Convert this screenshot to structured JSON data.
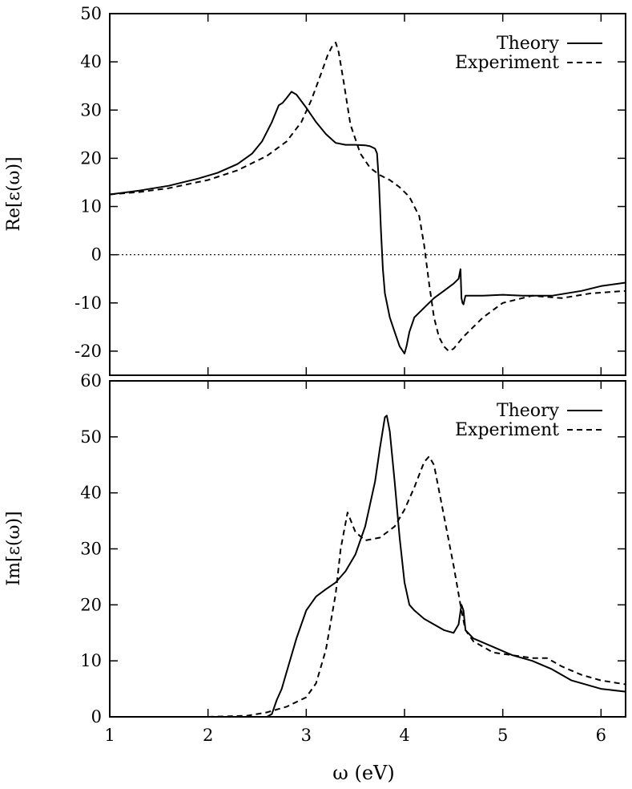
{
  "chart_data": [
    {
      "type": "line",
      "panel": "top",
      "ylabel": "Re[ε(ω)]",
      "xlabel": "",
      "xlim": [
        1,
        6.25
      ],
      "ylim": [
        -25,
        50
      ],
      "x_ticks": [
        "1",
        "2",
        "3",
        "4",
        "5",
        "6"
      ],
      "y_ticks": [
        "-20",
        "-10",
        "0",
        "10",
        "20",
        "30",
        "40",
        "50"
      ],
      "x_tick_values": [
        1,
        2,
        3,
        4,
        5,
        6
      ],
      "y_tick_values": [
        -20,
        -10,
        0,
        10,
        20,
        30,
        40,
        50
      ],
      "zero_line": true,
      "legend_position": "top-right",
      "series": [
        {
          "name": "Theory",
          "style": "solid",
          "x": [
            1.0,
            1.3,
            1.6,
            1.9,
            2.1,
            2.3,
            2.45,
            2.55,
            2.65,
            2.72,
            2.76,
            2.8,
            2.85,
            2.9,
            3.0,
            3.1,
            3.2,
            3.3,
            3.4,
            3.5,
            3.6,
            3.65,
            3.7,
            3.72,
            3.74,
            3.76,
            3.78,
            3.8,
            3.85,
            3.9,
            3.95,
            4.0,
            4.02,
            4.05,
            4.1,
            4.2,
            4.3,
            4.4,
            4.5,
            4.55,
            4.57,
            4.58,
            4.59,
            4.6,
            4.62,
            4.65,
            4.7,
            4.8,
            5.0,
            5.2,
            5.5,
            5.8,
            6.0,
            6.25
          ],
          "y": [
            12.5,
            13.3,
            14.3,
            15.8,
            17.0,
            18.8,
            21.0,
            23.5,
            27.5,
            31.0,
            31.5,
            32.5,
            33.8,
            33.2,
            30.5,
            27.5,
            25.0,
            23.2,
            22.8,
            22.8,
            22.7,
            22.5,
            22.0,
            21.0,
            15.0,
            5.0,
            -3.0,
            -8.0,
            -13.0,
            -16.0,
            -19.0,
            -20.5,
            -19.0,
            -16.0,
            -13.0,
            -11.0,
            -9.0,
            -7.5,
            -6.0,
            -5.0,
            -3.0,
            -9.0,
            -10.0,
            -10.3,
            -8.5,
            -8.5,
            -8.5,
            -8.5,
            -8.3,
            -8.5,
            -8.5,
            -7.5,
            -6.5,
            -5.8
          ]
        },
        {
          "name": "Experiment",
          "style": "dashed",
          "x": [
            1.0,
            1.3,
            1.6,
            2.0,
            2.3,
            2.6,
            2.8,
            2.95,
            3.05,
            3.15,
            3.22,
            3.27,
            3.3,
            3.33,
            3.38,
            3.45,
            3.55,
            3.65,
            3.75,
            3.85,
            3.95,
            4.05,
            4.15,
            4.2,
            4.25,
            4.3,
            4.35,
            4.4,
            4.45,
            4.5,
            4.6,
            4.8,
            5.0,
            5.3,
            5.6,
            5.9,
            6.25
          ],
          "y": [
            12.5,
            13.0,
            13.8,
            15.5,
            17.5,
            20.5,
            23.5,
            27.5,
            32.0,
            37.5,
            41.5,
            43.5,
            44.0,
            42.0,
            36.0,
            27.0,
            21.0,
            18.0,
            16.5,
            15.5,
            14.0,
            12.0,
            8.0,
            2.0,
            -6.0,
            -13.0,
            -17.0,
            -19.0,
            -20.0,
            -19.5,
            -17.0,
            -13.0,
            -10.0,
            -8.5,
            -9.0,
            -8.0,
            -7.5
          ]
        }
      ]
    },
    {
      "type": "line",
      "panel": "bottom",
      "ylabel": "Im[ε(ω)]",
      "xlabel": "ω (eV)",
      "xlim": [
        1,
        6.25
      ],
      "ylim": [
        0,
        60
      ],
      "x_ticks": [
        "1",
        "2",
        "3",
        "4",
        "5",
        "6"
      ],
      "y_ticks": [
        "0",
        "10",
        "20",
        "30",
        "40",
        "50",
        "60"
      ],
      "x_tick_values": [
        1,
        2,
        3,
        4,
        5,
        6
      ],
      "y_tick_values": [
        0,
        10,
        20,
        30,
        40,
        50,
        60
      ],
      "legend_position": "top-right",
      "series": [
        {
          "name": "Theory",
          "style": "solid",
          "x": [
            1.0,
            2.0,
            2.6,
            2.65,
            2.7,
            2.75,
            2.8,
            2.9,
            3.0,
            3.1,
            3.2,
            3.3,
            3.4,
            3.5,
            3.6,
            3.7,
            3.75,
            3.8,
            3.82,
            3.85,
            3.9,
            3.95,
            4.0,
            4.05,
            4.1,
            4.2,
            4.3,
            4.4,
            4.5,
            4.55,
            4.58,
            4.6,
            4.62,
            4.7,
            4.9,
            5.1,
            5.3,
            5.5,
            5.7,
            6.0,
            6.25
          ],
          "y": [
            0,
            0,
            0,
            0.5,
            3.0,
            5.0,
            8.0,
            14.0,
            19.0,
            21.5,
            22.8,
            24.0,
            26.0,
            29.0,
            34.0,
            42.0,
            48.0,
            53.5,
            53.8,
            51.0,
            42.0,
            32.0,
            24.0,
            20.0,
            19.0,
            17.5,
            16.5,
            15.5,
            15.0,
            16.5,
            20.0,
            19.0,
            15.5,
            14.0,
            12.5,
            11.0,
            10.0,
            8.5,
            6.5,
            5.0,
            4.5
          ]
        },
        {
          "name": "Experiment",
          "style": "dashed",
          "x": [
            2.0,
            2.4,
            2.6,
            2.8,
            3.0,
            3.1,
            3.2,
            3.3,
            3.35,
            3.42,
            3.5,
            3.6,
            3.75,
            3.9,
            4.0,
            4.1,
            4.2,
            4.25,
            4.3,
            4.4,
            4.5,
            4.58,
            4.62,
            4.7,
            4.9,
            5.1,
            5.3,
            5.45,
            5.6,
            5.8,
            6.0,
            6.25
          ],
          "y": [
            0,
            0.2,
            0.8,
            1.8,
            3.5,
            6.0,
            12.0,
            22.0,
            30.0,
            36.5,
            33.0,
            31.5,
            32.0,
            34.0,
            37.0,
            41.0,
            45.5,
            46.5,
            45.0,
            36.0,
            27.0,
            19.0,
            15.5,
            13.5,
            11.5,
            11.0,
            10.5,
            10.5,
            9.0,
            7.5,
            6.5,
            5.8
          ]
        }
      ]
    }
  ]
}
